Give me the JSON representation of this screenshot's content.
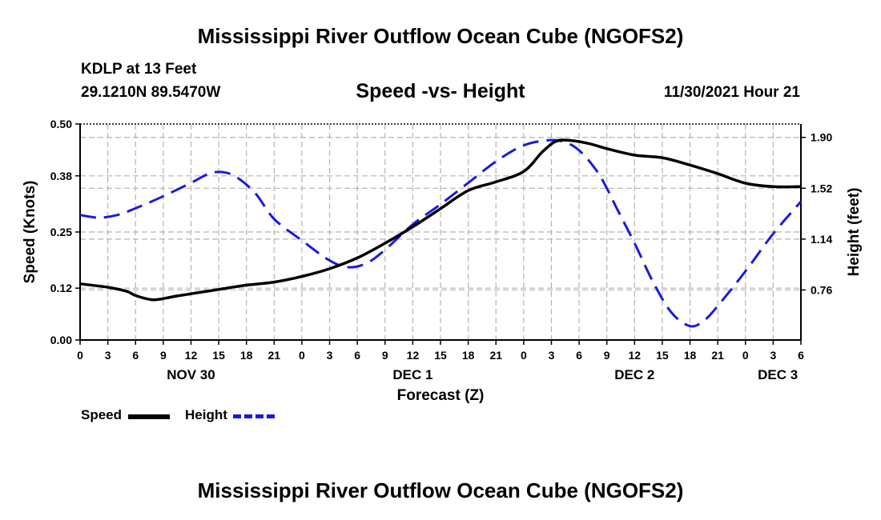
{
  "page": {
    "title": "Mississippi River Outflow Ocean Cube (NGOFS2)",
    "station": "KDLP at 13 Feet",
    "coordinates": "29.1210N  89.5470W",
    "subtitle": "Speed -vs- Height",
    "date": "11/30/2021 Hour 21",
    "footer_title": "Mississippi River Outflow Ocean Cube (NGOFS2)"
  },
  "colors": {
    "speed": "#000000",
    "height": "#1a1adc",
    "grid": "#b4b4b4"
  },
  "chart_data": {
    "type": "line",
    "title": "Speed -vs- Height",
    "xlabel": "Forecast (Z)",
    "ylabel": "Speed (Knots)",
    "y2label": "Height (feet)",
    "x_unit": "forecast hours from 00Z Nov 30",
    "xlim": [
      0,
      78
    ],
    "ylim": [
      0,
      0.5
    ],
    "y2lim": [
      0.386,
      2.0
    ],
    "xticks": [
      0,
      3,
      6,
      9,
      12,
      15,
      18,
      21,
      24,
      27,
      30,
      33,
      36,
      39,
      42,
      45,
      48,
      51,
      54,
      57,
      60,
      63,
      66,
      69,
      72,
      75,
      78
    ],
    "xtick_labels": [
      "0",
      "3",
      "6",
      "9",
      "12",
      "15",
      "18",
      "21",
      "0",
      "3",
      "6",
      "9",
      "12",
      "15",
      "18",
      "21",
      "0",
      "3",
      "6",
      "9",
      "12",
      "15",
      "18",
      "21",
      "0",
      "3",
      "6"
    ],
    "day_labels": [
      {
        "x": 12,
        "label": "NOV 30"
      },
      {
        "x": 36,
        "label": "DEC 1"
      },
      {
        "x": 60,
        "label": "DEC 2"
      },
      {
        "x": 75.5,
        "label": "DEC 3"
      }
    ],
    "yticks": [
      0.0,
      0.12,
      0.25,
      0.38,
      0.5
    ],
    "ytick_labels": [
      "0.00",
      "0.12",
      "0.25",
      "0.38",
      "0.50"
    ],
    "y2ticks": [
      0.76,
      1.14,
      1.52,
      1.9
    ],
    "y2tick_labels": [
      "0.76",
      "1.14",
      "1.52",
      "1.90"
    ],
    "grid": true,
    "legend_position": "bottom-left",
    "series": [
      {
        "name": "Speed",
        "axis": "left",
        "style": "solid",
        "x": [
          0,
          3,
          5,
          6,
          7.5,
          8.5,
          10,
          12,
          15,
          18,
          21,
          24,
          27,
          30,
          33,
          36,
          39,
          42,
          45,
          48,
          50,
          51.5,
          53,
          55,
          57,
          60,
          63,
          66,
          69,
          72,
          75,
          78
        ],
        "values": [
          0.13,
          0.122,
          0.113,
          0.103,
          0.094,
          0.094,
          0.1,
          0.107,
          0.117,
          0.127,
          0.134,
          0.147,
          0.165,
          0.19,
          0.224,
          0.262,
          0.304,
          0.346,
          0.366,
          0.39,
          0.435,
          0.46,
          0.462,
          0.455,
          0.443,
          0.428,
          0.422,
          0.405,
          0.385,
          0.363,
          0.355,
          0.355
        ]
      },
      {
        "name": "Height",
        "axis": "right",
        "style": "dashed",
        "x": [
          0,
          2,
          4,
          6,
          9,
          12,
          14,
          15.5,
          17,
          19,
          21,
          24,
          27,
          29,
          31,
          33,
          36,
          39,
          42,
          45,
          48,
          51,
          53,
          54.5,
          56,
          57,
          58,
          60,
          62,
          64,
          66,
          67.5,
          69,
          72,
          75,
          78
        ],
        "values": [
          1.32,
          1.3,
          1.32,
          1.37,
          1.46,
          1.56,
          1.63,
          1.64,
          1.6,
          1.48,
          1.29,
          1.13,
          0.98,
          0.93,
          0.96,
          1.06,
          1.25,
          1.4,
          1.56,
          1.72,
          1.84,
          1.88,
          1.85,
          1.77,
          1.64,
          1.52,
          1.38,
          1.11,
          0.82,
          0.59,
          0.49,
          0.53,
          0.64,
          0.9,
          1.18,
          1.42
        ]
      }
    ]
  }
}
